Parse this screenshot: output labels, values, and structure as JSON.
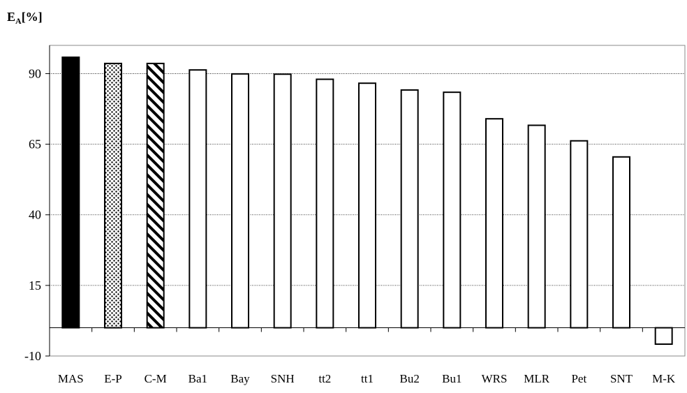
{
  "chart_data": {
    "type": "bar",
    "title": "",
    "ylabel": "E",
    "ylabel_subscript": "A",
    "ylabel_suffix": "[%]",
    "xlabel": "",
    "ylim": [
      -10,
      100
    ],
    "yticks": [
      -10,
      15,
      40,
      65,
      90
    ],
    "grid": true,
    "legend": "none",
    "categories": [
      "MAS",
      "E-P",
      "C-M",
      "Ba1",
      "Bay",
      "SNH",
      "tt2",
      "tt1",
      "Bu2",
      "Bu1",
      "WRS",
      "MLR",
      "Pet",
      "SNT",
      "M-K"
    ],
    "values": [
      95.8,
      93.6,
      93.6,
      91.3,
      89.9,
      89.8,
      88.0,
      86.6,
      84.2,
      83.4,
      74.0,
      71.7,
      66.2,
      60.5,
      -5.8
    ],
    "fills": [
      "solid-black",
      "dotted",
      "hatched",
      "white",
      "white",
      "white",
      "white",
      "white",
      "white",
      "white",
      "white",
      "white",
      "white",
      "white",
      "white"
    ]
  },
  "colors": {
    "bar_stroke": "#000000",
    "bar_fill": "#ffffff",
    "solid_fill": "#000000",
    "grid": "#000000",
    "background": "#ffffff"
  }
}
